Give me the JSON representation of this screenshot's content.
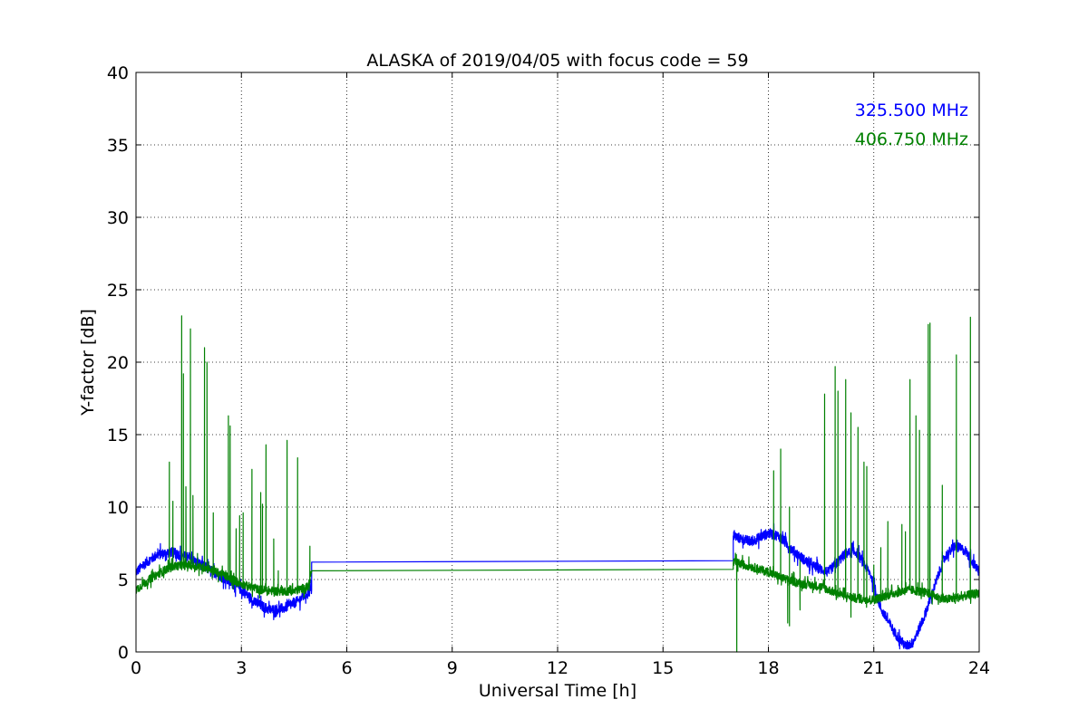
{
  "chart_data": {
    "type": "line",
    "title": "ALASKA of 2019/04/05 with focus code = 59",
    "xlabel": "Universal Time [h]",
    "ylabel": "Y-factor [dB]",
    "xlim": [
      0,
      24
    ],
    "ylim": [
      0,
      40
    ],
    "xticks": [
      0,
      3,
      6,
      9,
      12,
      15,
      18,
      21,
      24
    ],
    "yticks": [
      0,
      5,
      10,
      15,
      20,
      25,
      30,
      35,
      40
    ],
    "grid": true,
    "legend_position": "top-right",
    "series": [
      {
        "name": "325.500 MHz",
        "color": "#0000ff",
        "baseline": [
          [
            0.0,
            5.5
          ],
          [
            0.3,
            6.2
          ],
          [
            0.6,
            6.7
          ],
          [
            1.0,
            6.9
          ],
          [
            1.5,
            6.5
          ],
          [
            2.0,
            5.8
          ],
          [
            2.5,
            5.1
          ],
          [
            3.0,
            4.3
          ],
          [
            3.4,
            3.4
          ],
          [
            3.8,
            2.9
          ],
          [
            4.2,
            3.0
          ],
          [
            4.6,
            3.5
          ],
          [
            5.0,
            4.3
          ],
          [
            5.0,
            6.2
          ],
          [
            17.0,
            6.3
          ],
          [
            17.0,
            8.0
          ],
          [
            17.5,
            7.6
          ],
          [
            18.0,
            8.2
          ],
          [
            18.3,
            8.0
          ],
          [
            18.7,
            7.0
          ],
          [
            19.2,
            6.0
          ],
          [
            19.7,
            5.5
          ],
          [
            20.2,
            6.8
          ],
          [
            20.5,
            6.9
          ],
          [
            20.9,
            5.4
          ],
          [
            21.2,
            3.0
          ],
          [
            21.6,
            1.3
          ],
          [
            21.9,
            0.4
          ],
          [
            22.1,
            0.6
          ],
          [
            22.4,
            2.2
          ],
          [
            22.7,
            4.3
          ],
          [
            23.0,
            6.5
          ],
          [
            23.3,
            7.3
          ],
          [
            23.6,
            7.0
          ],
          [
            24.0,
            5.5
          ]
        ],
        "noise": 0.35
      },
      {
        "name": "406.750 MHz",
        "color": "#008000",
        "baseline": [
          [
            0.0,
            4.3
          ],
          [
            0.5,
            5.2
          ],
          [
            1.0,
            5.9
          ],
          [
            1.5,
            6.0
          ],
          [
            2.0,
            5.8
          ],
          [
            2.5,
            5.3
          ],
          [
            3.0,
            4.7
          ],
          [
            3.5,
            4.3
          ],
          [
            4.0,
            4.2
          ],
          [
            4.5,
            4.2
          ],
          [
            4.9,
            4.5
          ],
          [
            5.0,
            5.6
          ],
          [
            17.0,
            5.7
          ],
          [
            17.0,
            6.2
          ],
          [
            17.5,
            5.9
          ],
          [
            18.0,
            5.5
          ],
          [
            18.5,
            5.0
          ],
          [
            19.0,
            4.7
          ],
          [
            19.5,
            4.5
          ],
          [
            20.0,
            4.0
          ],
          [
            20.5,
            3.7
          ],
          [
            21.0,
            3.6
          ],
          [
            21.5,
            4.0
          ],
          [
            22.0,
            4.3
          ],
          [
            22.5,
            4.1
          ],
          [
            23.0,
            3.6
          ],
          [
            23.5,
            3.8
          ],
          [
            24.0,
            4.1
          ]
        ],
        "noise": 0.3,
        "spikes": [
          [
            0.95,
            13.1
          ],
          [
            1.05,
            10.4
          ],
          [
            1.3,
            23.2
          ],
          [
            1.35,
            19.2
          ],
          [
            1.42,
            11.4
          ],
          [
            1.55,
            22.3
          ],
          [
            1.62,
            10.8
          ],
          [
            1.75,
            6.8
          ],
          [
            1.95,
            21.0
          ],
          [
            2.02,
            20.0
          ],
          [
            2.2,
            9.6
          ],
          [
            2.63,
            16.3
          ],
          [
            2.68,
            15.6
          ],
          [
            2.85,
            8.5
          ],
          [
            2.95,
            9.4
          ],
          [
            3.05,
            9.6
          ],
          [
            3.3,
            12.6
          ],
          [
            3.55,
            11.0
          ],
          [
            3.6,
            10.2
          ],
          [
            3.7,
            14.3
          ],
          [
            3.92,
            7.8
          ],
          [
            4.05,
            5.6
          ],
          [
            4.3,
            14.6
          ],
          [
            4.6,
            13.4
          ],
          [
            4.95,
            7.3
          ],
          [
            18.15,
            12.5
          ],
          [
            18.35,
            14.0
          ],
          [
            18.6,
            10.0
          ],
          [
            18.9,
            6.3
          ],
          [
            19.6,
            17.8
          ],
          [
            19.9,
            19.7
          ],
          [
            19.98,
            18.0
          ],
          [
            20.2,
            18.8
          ],
          [
            20.35,
            16.5
          ],
          [
            20.55,
            15.5
          ],
          [
            20.72,
            13.1
          ],
          [
            20.8,
            12.8
          ],
          [
            21.0,
            6.0
          ],
          [
            21.2,
            7.2
          ],
          [
            21.4,
            9.0
          ],
          [
            21.8,
            8.8
          ],
          [
            21.9,
            8.3
          ],
          [
            22.03,
            18.8
          ],
          [
            22.2,
            16.3
          ],
          [
            22.3,
            15.3
          ],
          [
            22.55,
            22.6
          ],
          [
            22.6,
            22.7
          ],
          [
            22.95,
            11.5
          ],
          [
            23.35,
            20.5
          ],
          [
            23.75,
            23.1
          ]
        ],
        "drops": [
          [
            17.1,
            0.0
          ],
          [
            18.55,
            2.0
          ],
          [
            18.6,
            1.8
          ],
          [
            18.9,
            2.9
          ],
          [
            20.35,
            2.4
          ]
        ]
      }
    ]
  }
}
